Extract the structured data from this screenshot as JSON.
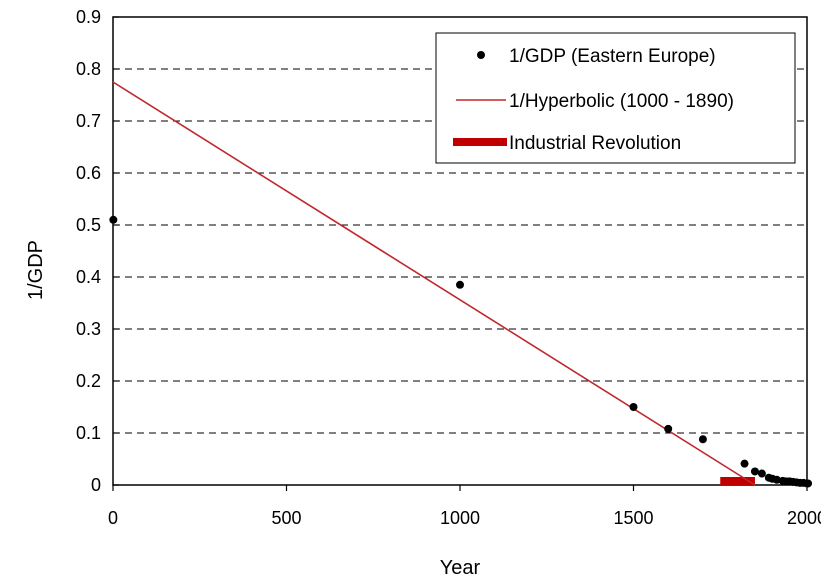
{
  "chart_data": {
    "type": "scatter",
    "xlabel": "Year",
    "ylabel": "1/GDP",
    "xlim": [
      0,
      2000
    ],
    "ylim": [
      0,
      0.9
    ],
    "x_ticks": [
      "0",
      "500",
      "1000",
      "1500",
      "2000"
    ],
    "y_ticks": [
      "0",
      "0.1",
      "0.2",
      "0.3",
      "0.4",
      "0.5",
      "0.6",
      "0.7",
      "0.8",
      "0.9"
    ],
    "grid": "horizontal dashed",
    "legend_position": "top-right",
    "series": [
      {
        "name": "1/GDP (Eastern Europe)",
        "kind": "scatter",
        "color": "#000000",
        "points": [
          [
            1,
            0.51
          ],
          [
            1000,
            0.385
          ],
          [
            1500,
            0.15
          ],
          [
            1600,
            0.108
          ],
          [
            1700,
            0.088
          ],
          [
            1820,
            0.041
          ],
          [
            1850,
            0.026
          ],
          [
            1870,
            0.022
          ],
          [
            1890,
            0.014
          ],
          [
            1900,
            0.012
          ],
          [
            1913,
            0.01
          ],
          [
            1930,
            0.008
          ],
          [
            1940,
            0.007
          ],
          [
            1950,
            0.007
          ],
          [
            1960,
            0.006
          ],
          [
            1970,
            0.005
          ],
          [
            1980,
            0.004
          ],
          [
            1990,
            0.004
          ],
          [
            2000,
            0.003
          ],
          [
            2003,
            0.003
          ]
        ]
      },
      {
        "name": "1/Hyperbolic (1000 - 1890)",
        "kind": "line",
        "color": "#c0282d",
        "points": [
          [
            0,
            0.775
          ],
          [
            1850,
            0.0
          ]
        ]
      },
      {
        "name": "Industrial Revolution",
        "kind": "band",
        "color": "#c00000",
        "range": [
          1750,
          1850
        ]
      }
    ]
  }
}
